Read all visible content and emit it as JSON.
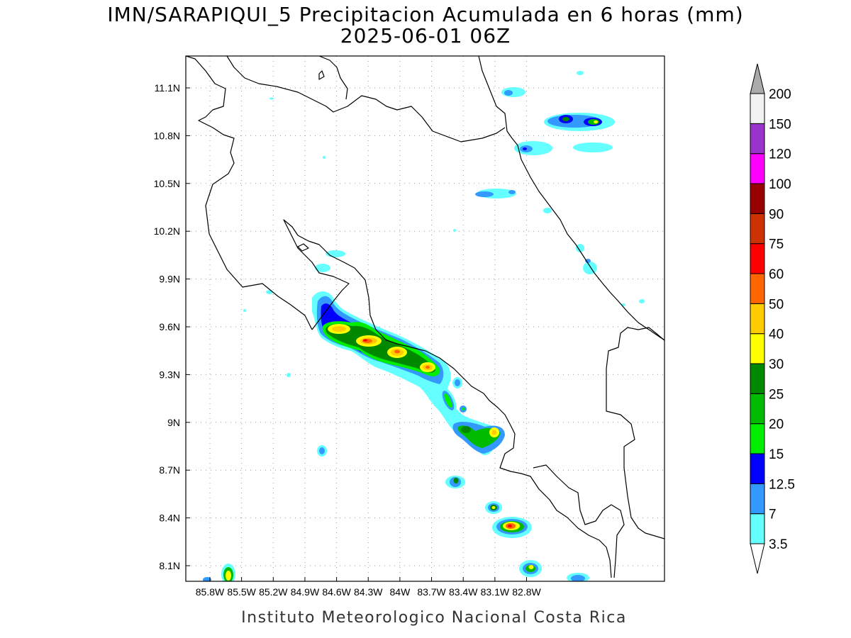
{
  "title": {
    "line1": "IMN/SARAPIQUI_5 Precipitacion Acumulada en 6 horas (mm)",
    "line2": "2025-06-01 06Z"
  },
  "footer": "Instituto Meteorologico Nacional Costa Rica",
  "map": {
    "lon_labels": [
      "85.8W",
      "85.5W",
      "85.2W",
      "84.9W",
      "84.6W",
      "84.3W",
      "84W",
      "83.7W",
      "83.4W",
      "83.1W",
      "82.8W"
    ],
    "lat_labels": [
      "11.1N",
      "10.8N",
      "10.5N",
      "10.2N",
      "9.9N",
      "9.6N",
      "9.3N",
      "9N",
      "8.7N",
      "8.4N",
      "8.1N"
    ]
  },
  "colorbar": {
    "levels": [
      "3.5",
      "7",
      "12.5",
      "15",
      "20",
      "25",
      "30",
      "40",
      "50",
      "60",
      "75",
      "90",
      "100",
      "120",
      "150",
      "200"
    ],
    "colors": [
      "#66ffff",
      "#3399ff",
      "#0000ff",
      "#00ee00",
      "#00bb00",
      "#008800",
      "#ffff00",
      "#ffcc00",
      "#ff6600",
      "#ff0000",
      "#cc3300",
      "#990000",
      "#ff00ff",
      "#9933cc",
      "#f2f2f2",
      "#aaaaaa"
    ]
  }
}
